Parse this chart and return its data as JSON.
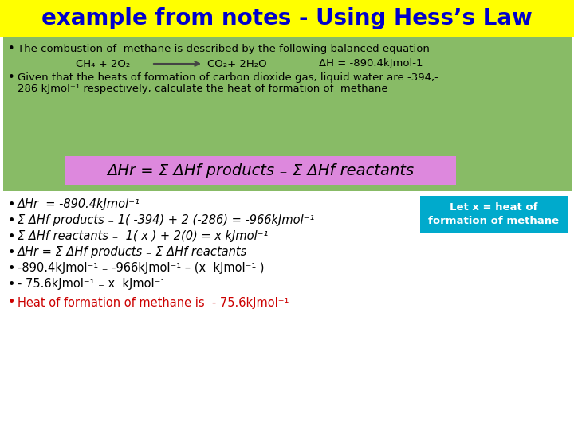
{
  "title": "example from notes - Using Hess’s Law",
  "title_bg": "#ffff00",
  "title_color": "#0000cc",
  "title_fontsize": 20,
  "top_bg": "#88bb66",
  "white_bg": "#ffffff",
  "pink_bg": "#dd88dd",
  "cyan_bg": "#00aacc",
  "bullet1": "The combustion of  methane is described by the following balanced equation",
  "eq_left": "CH₄ + 2O₂",
  "eq_right": "CO₂+ 2H₂O",
  "eq_dH": "ΔH = -890.4kJmol-1",
  "bullet2_line1": "Given that the heats of formation of carbon dioxide gas, liquid water are -394,-",
  "bullet2_line2": "286 kJmol⁻¹ respectively, calculate the heat of formation of  methane",
  "cyan_note": "Let x = heat of\nformation of methane",
  "step7_color": "#cc0000",
  "bullet_color": "#000000",
  "text_color": "#000000",
  "body_fontsize": 9.5,
  "step_fontsize": 10.5
}
